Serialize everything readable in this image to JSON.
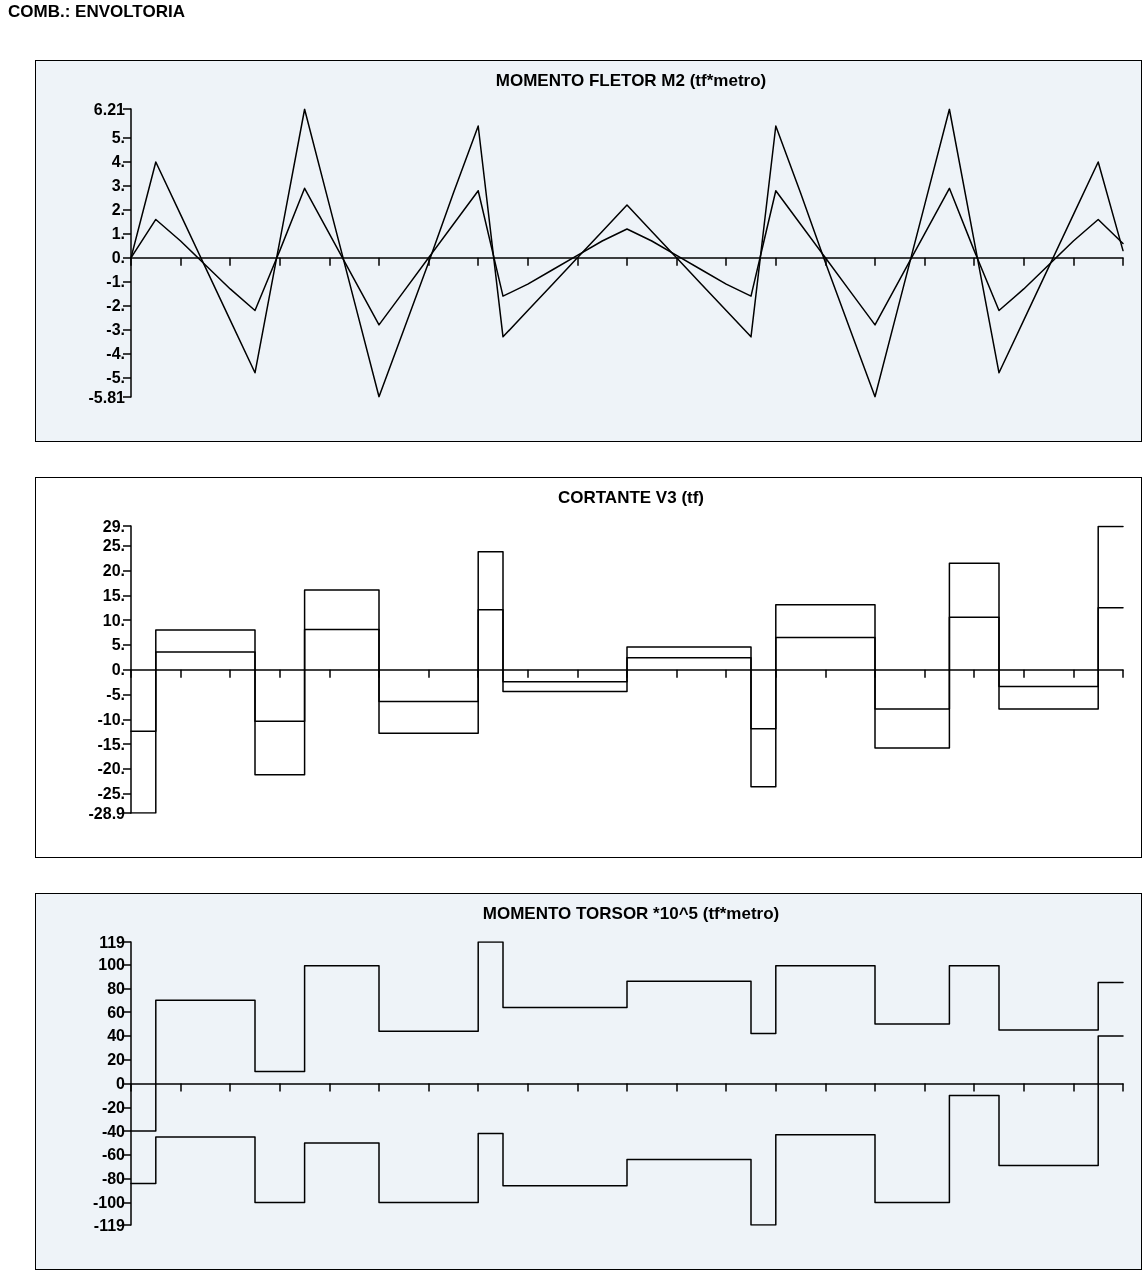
{
  "chart_data": [
    {
      "type": "line",
      "title": "MOMENTO FLETOR M2 (tf*metro)",
      "annotations": [
        "COMB.: ENVOLTORIA"
      ],
      "categories": [
        null,
        null,
        null,
        null,
        null,
        null,
        null,
        null,
        null,
        null,
        null,
        null,
        null,
        null,
        null,
        null,
        null,
        null,
        null,
        null,
        null,
        null,
        null,
        null,
        null,
        null,
        null,
        null,
        null,
        null,
        null,
        null,
        null,
        null,
        null,
        null,
        null,
        null,
        null,
        null,
        null
      ],
      "series": [
        {
          "color": "#000000",
          "values": [
            0,
            4.0,
            1.8,
            -0.4,
            -2.6,
            -4.8,
            0.7,
            6.2,
            2.2,
            -1.8,
            -5.8,
            -3.0,
            -0.2,
            2.7,
            5.5,
            -3.3,
            -2.2,
            -1.1,
            0,
            1.1,
            2.2,
            1.1,
            0,
            -1.1,
            -2.2,
            -3.3,
            5.5,
            2.7,
            -0.2,
            -3.0,
            -5.8,
            -1.8,
            2.2,
            6.2,
            0.7,
            -4.8,
            -2.6,
            -0.4,
            1.8,
            4.0,
            0.3
          ]
        },
        {
          "color": "#000000",
          "values": [
            0,
            1.6,
            0.7,
            -0.3,
            -1.3,
            -2.2,
            0.3,
            2.9,
            1.0,
            -0.9,
            -2.8,
            -1.4,
            0,
            1.4,
            2.8,
            -1.6,
            -1.1,
            -0.5,
            0.1,
            0.7,
            1.2,
            0.7,
            0.1,
            -0.5,
            -1.1,
            -1.6,
            2.8,
            1.4,
            0,
            -1.4,
            -2.8,
            -0.9,
            1.0,
            2.9,
            0.3,
            -2.2,
            -1.3,
            -0.3,
            0.7,
            1.6,
            0.6
          ]
        }
      ],
      "ylim": [
        -5.81,
        6.21
      ],
      "yticks": [
        6.21,
        {
          "value": 5,
          "label": "5."
        },
        {
          "value": 4,
          "label": "4."
        },
        {
          "value": 3,
          "label": "3."
        },
        {
          "value": 2,
          "label": "2."
        },
        {
          "value": 1,
          "label": "1."
        },
        {
          "value": 0,
          "label": "0."
        },
        {
          "value": -1,
          "label": "-1."
        },
        {
          "value": -2,
          "label": "-2."
        },
        {
          "value": -3,
          "label": "-3."
        },
        {
          "value": -4,
          "label": "-4."
        },
        {
          "value": -5,
          "label": "-5."
        },
        -5.81
      ],
      "tick_labels": "y",
      "marker": "none",
      "line_style": "solid"
    },
    {
      "type": "step",
      "title": "CORTANTE V3 (tf)",
      "categories": [
        null,
        null,
        null,
        null,
        null,
        null,
        null,
        null,
        null,
        null,
        null,
        null,
        null,
        null,
        null,
        null,
        null,
        null,
        null,
        null,
        null,
        null,
        null,
        null,
        null,
        null,
        null,
        null,
        null,
        null,
        null,
        null,
        null,
        null,
        null,
        null,
        null,
        null,
        null,
        null,
        null
      ],
      "series": [
        {
          "color": "#000000",
          "values": [
            -12.4,
            8.0,
            8.0,
            8.0,
            8.0,
            -10.4,
            -10.4,
            16.1,
            16.1,
            16.1,
            -6.4,
            -6.4,
            -6.4,
            -6.4,
            23.8,
            -2.4,
            -2.4,
            -2.4,
            -2.4,
            -2.4,
            4.6,
            4.6,
            4.6,
            4.6,
            4.6,
            -11.9,
            13.1,
            13.1,
            13.1,
            13.1,
            -7.9,
            -7.9,
            -7.9,
            21.5,
            21.5,
            -3.4,
            -3.4,
            -3.4,
            -3.4,
            28.9,
            28.9
          ]
        },
        {
          "color": "#000000",
          "values": [
            -28.9,
            3.6,
            3.6,
            3.6,
            3.6,
            -21.2,
            -21.2,
            8.1,
            8.1,
            8.1,
            -12.8,
            -12.8,
            -12.8,
            -12.8,
            12.1,
            -4.4,
            -4.4,
            -4.4,
            -4.4,
            -4.4,
            2.4,
            2.4,
            2.4,
            2.4,
            2.4,
            -23.6,
            6.5,
            6.5,
            6.5,
            6.5,
            -15.8,
            -15.8,
            -15.8,
            10.6,
            10.6,
            -7.9,
            -7.9,
            -7.9,
            -7.9,
            12.5,
            12.5
          ]
        }
      ],
      "ylim": [
        -28.9,
        29
      ],
      "yticks": [
        {
          "value": 29,
          "label": "29."
        },
        {
          "value": 25,
          "label": "25."
        },
        {
          "value": 20,
          "label": "20."
        },
        {
          "value": 15,
          "label": "15."
        },
        {
          "value": 10,
          "label": "10."
        },
        {
          "value": 5,
          "label": "5."
        },
        {
          "value": 0,
          "label": "0."
        },
        {
          "value": -5,
          "label": "-5."
        },
        {
          "value": -10,
          "label": "-10."
        },
        {
          "value": -15,
          "label": "-15."
        },
        {
          "value": -20,
          "label": "-20."
        },
        {
          "value": -25,
          "label": "-25."
        },
        -28.9
      ],
      "tick_labels": "y",
      "marker": "none",
      "line_style": "solid"
    },
    {
      "type": "step",
      "title": "MOMENTO TORSOR *10^5 (tf*metro)",
      "categories": [
        null,
        null,
        null,
        null,
        null,
        null,
        null,
        null,
        null,
        null,
        null,
        null,
        null,
        null,
        null,
        null,
        null,
        null,
        null,
        null,
        null,
        null,
        null,
        null,
        null,
        null,
        null,
        null,
        null,
        null,
        null,
        null,
        null,
        null,
        null,
        null,
        null,
        null,
        null,
        null,
        null
      ],
      "series": [
        {
          "color": "#000000",
          "values": [
            -40,
            70,
            70,
            70,
            70,
            10,
            10,
            99,
            99,
            99,
            44,
            44,
            44,
            44,
            119,
            64,
            64,
            64,
            64,
            64,
            86,
            86,
            86,
            86,
            86,
            42,
            99,
            99,
            99,
            99,
            50,
            50,
            50,
            99,
            99,
            45,
            45,
            45,
            45,
            85,
            85
          ]
        },
        {
          "color": "#000000",
          "values": [
            -84,
            -45,
            -45,
            -45,
            -45,
            -100,
            -100,
            -50,
            -50,
            -50,
            -100,
            -100,
            -100,
            -100,
            -42,
            -86,
            -86,
            -86,
            -86,
            -86,
            -64,
            -64,
            -64,
            -64,
            -64,
            -119,
            -43,
            -43,
            -43,
            -43,
            -100,
            -100,
            -100,
            -10,
            -10,
            -69,
            -69,
            -69,
            -69,
            40,
            40
          ]
        }
      ],
      "ylim": [
        -119,
        119
      ],
      "yticks": [
        119,
        100,
        80,
        60,
        40,
        20,
        0,
        -20,
        -40,
        -60,
        -80,
        -100,
        -119
      ],
      "tick_labels": "y",
      "marker": "none",
      "line_style": "solid"
    }
  ]
}
